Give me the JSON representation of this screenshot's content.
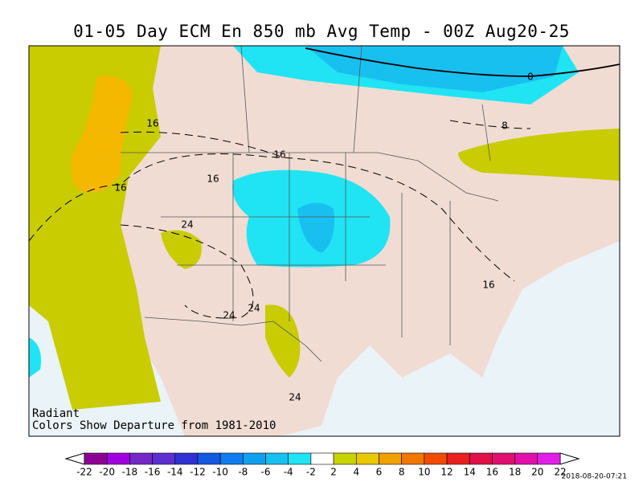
{
  "header": {
    "title": "01-05 Day ECM En 850 mb Avg Temp - 00Z Aug20-25"
  },
  "map": {
    "contour_labels": [
      "0",
      "8",
      "16",
      "16",
      "16",
      "16",
      "16",
      "24",
      "24",
      "24",
      "24"
    ],
    "notes": [
      "Radiant",
      "Colors Show Departure from 1981-2010"
    ]
  },
  "colorbar": {
    "ticks": [
      -22,
      -20,
      -18,
      -16,
      -14,
      -12,
      -10,
      -8,
      -6,
      -4,
      -2,
      2,
      4,
      6,
      8,
      10,
      12,
      14,
      16,
      18,
      20,
      22
    ],
    "colors": [
      "#8c0094",
      "#a000e0",
      "#7428c8",
      "#5c30d0",
      "#3030d4",
      "#1458e0",
      "#107cf0",
      "#10a0f0",
      "#18c0f0",
      "#20e4f4",
      "#ffffff",
      "#c8d400",
      "#e8c800",
      "#f0a000",
      "#f07800",
      "#f04c00",
      "#e82020",
      "#e01048",
      "#e01070",
      "#e010a8",
      "#e020e8"
    ]
  },
  "footer": {
    "timestamp": "2018-08-20-07:21"
  }
}
